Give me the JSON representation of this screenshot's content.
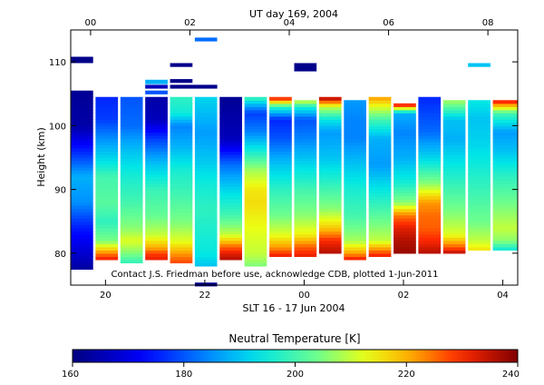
{
  "chart_data": {
    "type": "heatmap",
    "top_axis": {
      "title": "UT day 169, 2004",
      "ticks": [
        {
          "label": "00",
          "hours": 0
        },
        {
          "label": "02",
          "hours": 2
        },
        {
          "label": "04",
          "hours": 4
        },
        {
          "label": "06",
          "hours": 6
        },
        {
          "label": "08",
          "hours": 8
        }
      ]
    },
    "bottom_axis": {
      "title": "SLT 16 - 17 Jun 2004",
      "ticks": [
        {
          "label": "20",
          "hours": 0.3
        },
        {
          "label": "22",
          "hours": 2.3
        },
        {
          "label": "00",
          "hours": 4.3
        },
        {
          "label": "02",
          "hours": 6.3
        },
        {
          "label": "04",
          "hours": 8.3
        }
      ]
    },
    "xlim_hours": [
      -0.4,
      8.6
    ],
    "y_axis": {
      "label": "Height (km)",
      "range": [
        75,
        115
      ],
      "ticks": [
        80,
        90,
        100,
        110
      ]
    },
    "note": "Contact J.S. Friedman before use, acknowledge CDB, plotted 1-Jun-2011",
    "colorbar": {
      "title": "Neutral Temperature [K]",
      "range": [
        160,
        240
      ],
      "ticks": [
        160,
        180,
        200,
        220,
        240
      ]
    },
    "profiles": [
      {
        "t0": -0.4,
        "t1": 0.05,
        "bottom": 77.5,
        "top": 105.5,
        "knots": [
          [
            77.5,
            163
          ],
          [
            80,
            168
          ],
          [
            84,
            175
          ],
          [
            88,
            185
          ],
          [
            92,
            188
          ],
          [
            96,
            176
          ],
          [
            100,
            164
          ],
          [
            105.5,
            162
          ]
        ]
      },
      {
        "t0": 0.1,
        "t1": 0.55,
        "bottom": 79,
        "top": 104.5,
        "knots": [
          [
            79,
            232
          ],
          [
            80,
            224
          ],
          [
            81,
            214
          ],
          [
            82,
            205
          ],
          [
            85,
            198
          ],
          [
            88,
            202
          ],
          [
            92,
            200
          ],
          [
            95,
            192
          ],
          [
            98,
            185
          ],
          [
            101,
            178
          ],
          [
            104.5,
            176
          ]
        ]
      },
      {
        "t0": 0.6,
        "t1": 1.05,
        "bottom": 78.5,
        "top": 104.5,
        "knots": [
          [
            78.5,
            198
          ],
          [
            80,
            205
          ],
          [
            82,
            212
          ],
          [
            84,
            206
          ],
          [
            88,
            200
          ],
          [
            92,
            196
          ],
          [
            96,
            190
          ],
          [
            100,
            182
          ],
          [
            104.5,
            180
          ]
        ]
      },
      {
        "t0": 1.1,
        "t1": 1.55,
        "bottom": 79,
        "top": 104.5,
        "knots": [
          [
            79,
            232
          ],
          [
            80,
            228
          ],
          [
            81,
            220
          ],
          [
            83,
            210
          ],
          [
            86,
            203
          ],
          [
            90,
            199
          ],
          [
            94,
            190
          ],
          [
            98,
            178
          ],
          [
            101,
            166
          ],
          [
            104.5,
            164
          ]
        ]
      },
      {
        "t0": 1.6,
        "t1": 2.05,
        "bottom": 78.5,
        "top": 104.5,
        "knots": [
          [
            78.5,
            228
          ],
          [
            80,
            222
          ],
          [
            82,
            212
          ],
          [
            85,
            205
          ],
          [
            89,
            200
          ],
          [
            93,
            196
          ],
          [
            97,
            188
          ],
          [
            100,
            184
          ],
          [
            102,
            195
          ],
          [
            104.5,
            198
          ]
        ]
      },
      {
        "t0": 2.1,
        "t1": 2.55,
        "bottom": 78,
        "top": 104.5,
        "knots": [
          [
            78,
            190
          ],
          [
            80,
            194
          ],
          [
            83,
            196
          ],
          [
            87,
            198
          ],
          [
            91,
            195
          ],
          [
            95,
            190
          ],
          [
            99,
            186
          ],
          [
            104.5,
            192
          ]
        ]
      },
      {
        "t0": 2.6,
        "t1": 3.05,
        "bottom": 79,
        "top": 104.5,
        "knots": [
          [
            79,
            236
          ],
          [
            80,
            232
          ],
          [
            81,
            226
          ],
          [
            83,
            210
          ],
          [
            86,
            200
          ],
          [
            90,
            192
          ],
          [
            94,
            182
          ],
          [
            98,
            166
          ],
          [
            104.5,
            162
          ]
        ]
      },
      {
        "t0": 3.1,
        "t1": 3.55,
        "bottom": 78,
        "top": 104.5,
        "knots": [
          [
            78,
            205
          ],
          [
            80,
            210
          ],
          [
            83,
            212
          ],
          [
            88,
            216
          ],
          [
            90,
            215
          ],
          [
            93,
            208
          ],
          [
            96,
            196
          ],
          [
            99,
            184
          ],
          [
            102,
            178
          ],
          [
            103.5,
            190
          ],
          [
            104.5,
            200
          ]
        ]
      },
      {
        "t0": 3.6,
        "t1": 4.05,
        "bottom": 79.5,
        "top": 104.5,
        "knots": [
          [
            79.5,
            232
          ],
          [
            81,
            222
          ],
          [
            83,
            212
          ],
          [
            86,
            204
          ],
          [
            90,
            198
          ],
          [
            94,
            190
          ],
          [
            98,
            180
          ],
          [
            101,
            176
          ],
          [
            103,
            198
          ],
          [
            104.5,
            234
          ]
        ]
      },
      {
        "t0": 4.1,
        "t1": 4.55,
        "bottom": 79.5,
        "top": 104,
        "knots": [
          [
            79.5,
            232
          ],
          [
            81,
            226
          ],
          [
            83,
            214
          ],
          [
            86,
            206
          ],
          [
            90,
            200
          ],
          [
            94,
            192
          ],
          [
            98,
            184
          ],
          [
            101,
            180
          ],
          [
            103,
            196
          ],
          [
            104,
            212
          ]
        ]
      },
      {
        "t0": 4.6,
        "t1": 5.05,
        "bottom": 80,
        "top": 104.5,
        "knots": [
          [
            80,
            236
          ],
          [
            82,
            230
          ],
          [
            84,
            218
          ],
          [
            87,
            206
          ],
          [
            91,
            198
          ],
          [
            95,
            190
          ],
          [
            99,
            186
          ],
          [
            101,
            194
          ],
          [
            103,
            210
          ],
          [
            104.5,
            238
          ]
        ]
      },
      {
        "t0": 5.1,
        "t1": 5.55,
        "bottom": 79,
        "top": 104,
        "knots": [
          [
            79,
            232
          ],
          [
            80,
            222
          ],
          [
            82,
            208
          ],
          [
            86,
            200
          ],
          [
            90,
            196
          ],
          [
            94,
            190
          ],
          [
            98,
            184
          ],
          [
            101,
            184
          ],
          [
            104,
            186
          ]
        ]
      },
      {
        "t0": 5.6,
        "t1": 6.05,
        "bottom": 79.5,
        "top": 104.5,
        "knots": [
          [
            79.5,
            232
          ],
          [
            80.5,
            224
          ],
          [
            82,
            210
          ],
          [
            86,
            202
          ],
          [
            90,
            194
          ],
          [
            94,
            186
          ],
          [
            98,
            188
          ],
          [
            101,
            200
          ],
          [
            103,
            212
          ],
          [
            104.5,
            222
          ]
        ]
      },
      {
        "t0": 6.1,
        "t1": 6.55,
        "bottom": 80,
        "top": 103.5,
        "knots": [
          [
            80,
            238
          ],
          [
            82,
            236
          ],
          [
            84,
            232
          ],
          [
            86,
            224
          ],
          [
            88,
            206
          ],
          [
            91,
            196
          ],
          [
            95,
            188
          ],
          [
            99,
            184
          ],
          [
            102,
            188
          ],
          [
            103,
            220
          ],
          [
            103.5,
            238
          ]
        ]
      },
      {
        "t0": 6.6,
        "t1": 7.05,
        "bottom": 80,
        "top": 104.5,
        "knots": [
          [
            80,
            236
          ],
          [
            82,
            230
          ],
          [
            84,
            226
          ],
          [
            86,
            225
          ],
          [
            88,
            222
          ],
          [
            91,
            206
          ],
          [
            95,
            192
          ],
          [
            99,
            182
          ],
          [
            104.5,
            176
          ]
        ]
      },
      {
        "t0": 7.1,
        "t1": 7.55,
        "bottom": 80,
        "top": 104,
        "knots": [
          [
            80,
            236
          ],
          [
            81,
            226
          ],
          [
            83,
            212
          ],
          [
            86,
            206
          ],
          [
            90,
            200
          ],
          [
            94,
            194
          ],
          [
            98,
            188
          ],
          [
            101,
            190
          ],
          [
            103,
            202
          ],
          [
            104,
            208
          ]
        ]
      },
      {
        "t0": 7.6,
        "t1": 8.05,
        "bottom": 80.5,
        "top": 104,
        "knots": [
          [
            80.5,
            216
          ],
          [
            82,
            210
          ],
          [
            85,
            204
          ],
          [
            89,
            200
          ],
          [
            93,
            196
          ],
          [
            97,
            192
          ],
          [
            101,
            190
          ],
          [
            104,
            194
          ]
        ]
      },
      {
        "t0": 8.1,
        "t1": 8.6,
        "bottom": 80.5,
        "top": 104,
        "knots": [
          [
            80.5,
            194
          ],
          [
            82,
            206
          ],
          [
            84,
            210
          ],
          [
            88,
            204
          ],
          [
            92,
            198
          ],
          [
            96,
            190
          ],
          [
            99,
            186
          ],
          [
            102,
            200
          ],
          [
            103,
            216
          ],
          [
            104,
            234
          ]
        ]
      }
    ],
    "fragments": [
      {
        "t0": -0.4,
        "t1": 0.05,
        "y0": 109.8,
        "y1": 110.8,
        "temp": 161
      },
      {
        "t0": 1.1,
        "t1": 1.55,
        "y0": 106.5,
        "y1": 107.2,
        "temp": 188
      },
      {
        "t0": 1.1,
        "t1": 1.55,
        "y0": 105.8,
        "y1": 106.4,
        "temp": 166
      },
      {
        "t0": 1.1,
        "t1": 1.55,
        "y0": 104.9,
        "y1": 105.5,
        "temp": 180
      },
      {
        "t0": 1.6,
        "t1": 2.05,
        "y0": 109.2,
        "y1": 109.8,
        "temp": 161
      },
      {
        "t0": 1.6,
        "t1": 2.05,
        "y0": 106.7,
        "y1": 107.3,
        "temp": 161
      },
      {
        "t0": 1.6,
        "t1": 2.55,
        "y0": 105.8,
        "y1": 106.4,
        "temp": 161
      },
      {
        "t0": 2.1,
        "t1": 2.55,
        "y0": 113.2,
        "y1": 113.8,
        "temp": 182
      },
      {
        "t0": 4.1,
        "t1": 4.55,
        "y0": 108.5,
        "y1": 109.8,
        "temp": 161
      },
      {
        "t0": 7.6,
        "t1": 8.05,
        "y0": 109.2,
        "y1": 109.8,
        "temp": 190
      },
      {
        "t0": 2.1,
        "t1": 2.55,
        "y0": 74.8,
        "y1": 75.4,
        "temp": 161
      }
    ]
  }
}
